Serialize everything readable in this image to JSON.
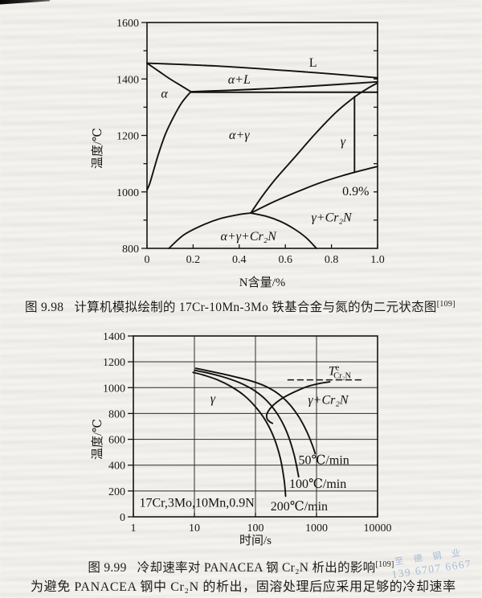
{
  "page": {
    "body_line": "为避免 PANACEA 钢中 Cr₂N 的析出，固溶处理后应采用足够的冷却速率",
    "watermark": {
      "line1": "至 德 钢 业",
      "line2": "139 6707 6667",
      "color": "#9cb3d8"
    }
  },
  "chart_data": [
    {
      "type": "line",
      "title": "计算机模拟绘制的 17Cr-10Mn-3Mo 铁基合金与氮的伪二元状态图",
      "caption": {
        "label": "图 9.98",
        "text": "计算机模拟绘制的 17Cr-10Mn-3Mo 铁基合金与氮的伪二元状态图",
        "ref": "[109]"
      },
      "xlabel": "N含量/%",
      "ylabel": "温度/℃",
      "xscale": "linear",
      "xlim": [
        0,
        1
      ],
      "ylim": [
        800,
        1600
      ],
      "grid": "off",
      "xlabel_dy": 47,
      "xticks": [
        {
          "v": 0,
          "l": "0"
        },
        {
          "v": 0.2,
          "l": "0.2"
        },
        {
          "v": 0.4,
          "l": "0.4"
        },
        {
          "v": 0.6,
          "l": "0.6"
        },
        {
          "v": 0.8,
          "l": "0.8"
        },
        {
          "v": 1,
          "l": "1.0"
        }
      ],
      "yticks": [
        {
          "v": 800,
          "l": "800"
        },
        {
          "v": 900
        },
        {
          "v": 1000,
          "l": "1000"
        },
        {
          "v": 1100
        },
        {
          "v": 1200,
          "l": "1200"
        },
        {
          "v": 1300
        },
        {
          "v": 1400,
          "l": "1400"
        },
        {
          "v": 1500
        },
        {
          "v": 1600,
          "l": "1600"
        }
      ],
      "right_ticks": [
        900,
        1000,
        1100,
        1200,
        1300,
        1400,
        1500
      ],
      "series": [
        {
          "name": "liquidus",
          "pts": [
            [
              0,
              1456
            ],
            [
              0.3,
              1446
            ],
            [
              0.6,
              1430
            ],
            [
              0.8,
              1418
            ],
            [
              1,
              1404
            ]
          ]
        },
        {
          "name": "delta-solidus",
          "pts": [
            [
              0,
              1456
            ],
            [
              0.05,
              1428
            ],
            [
              0.1,
              1400
            ],
            [
              0.15,
              1375
            ],
            [
              0.19,
              1355
            ]
          ]
        },
        {
          "name": "alpha-l-lower-boundary",
          "pts": [
            [
              0.19,
              1355
            ],
            [
              0.45,
              1363
            ],
            [
              0.7,
              1374
            ],
            [
              1,
              1390
            ]
          ]
        },
        {
          "name": "horizontal-line",
          "pts": [
            [
              0.19,
              1353
            ],
            [
              1,
              1353
            ]
          ]
        },
        {
          "name": "alpha-gamma-left-boundary",
          "pts": [
            [
              0.19,
              1355
            ],
            [
              0.15,
              1315
            ],
            [
              0.115,
              1265
            ],
            [
              0.08,
              1205
            ],
            [
              0.05,
              1135
            ],
            [
              0.03,
              1080
            ],
            [
              0.012,
              1030
            ],
            [
              0,
              1007
            ]
          ]
        },
        {
          "name": "gamma-left-boundary",
          "pts": [
            [
              0.45,
              925
            ],
            [
              0.5,
              985
            ],
            [
              0.56,
              1048
            ],
            [
              0.64,
              1122
            ],
            [
              0.73,
              1206
            ],
            [
              0.82,
              1282
            ],
            [
              0.9,
              1336
            ],
            [
              0.96,
              1368
            ],
            [
              1,
              1386
            ]
          ]
        },
        {
          "name": "gamma-cr2n-boundary",
          "pts": [
            [
              0.45,
              925
            ],
            [
              0.55,
              965
            ],
            [
              0.65,
              1000
            ],
            [
              0.75,
              1032
            ],
            [
              0.85,
              1058
            ],
            [
              0.95,
              1080
            ],
            [
              1,
              1090
            ]
          ]
        },
        {
          "name": "line-0-9-percent",
          "pts": [
            [
              0.9,
              1069
            ],
            [
              0.9,
              1338
            ]
          ]
        },
        {
          "name": "dome-left",
          "pts": [
            [
              0.095,
              800
            ],
            [
              0.16,
              848
            ],
            [
              0.24,
              882
            ],
            [
              0.32,
              906
            ],
            [
              0.4,
              920
            ],
            [
              0.45,
              925
            ]
          ]
        },
        {
          "name": "dome-right",
          "pts": [
            [
              0.45,
              925
            ],
            [
              0.52,
              913
            ],
            [
              0.58,
              895
            ],
            [
              0.64,
              868
            ],
            [
              0.69,
              838
            ],
            [
              0.735,
              800
            ]
          ]
        }
      ],
      "labels": [
        {
          "name": "region-label-l",
          "x": 0.72,
          "y": 1458,
          "segs": [
            {
              "t": "L"
            }
          ]
        },
        {
          "name": "region-label-alpha-l",
          "x": 0.4,
          "y": 1398,
          "segs": [
            {
              "t": "α+L",
              "it": true
            }
          ]
        },
        {
          "name": "region-label-alpha",
          "x": 0.075,
          "y": 1348,
          "segs": [
            {
              "t": "α",
              "it": true
            }
          ]
        },
        {
          "name": "region-label-alpha-gamma",
          "x": 0.4,
          "y": 1202,
          "segs": [
            {
              "t": "α+γ",
              "it": true
            }
          ]
        },
        {
          "name": "region-label-gamma",
          "x": 0.85,
          "y": 1178,
          "segs": [
            {
              "t": "γ",
              "it": true
            }
          ]
        },
        {
          "name": "annotation-0-9-percent",
          "x": 0.905,
          "y": 1002,
          "segs": [
            {
              "t": "0.9%"
            }
          ]
        },
        {
          "name": "region-label-gamma-cr2n",
          "x": 0.8,
          "y": 910,
          "segs": [
            {
              "t": "γ+Cr₂N",
              "it": true
            }
          ]
        },
        {
          "name": "region-label-alpha-gamma-cr2n",
          "x": 0.44,
          "y": 842,
          "segs": [
            {
              "t": "α+γ+Cr₂N",
              "it": true
            }
          ]
        }
      ]
    },
    {
      "type": "line",
      "title": "冷却速率对 PANACEA 钢 Cr₂N 析出的影响",
      "caption": {
        "label": "图 9.99",
        "text": "冷却速率对 PANACEA 钢 Cr₂N 析出的影响",
        "ref": "[109]"
      },
      "xlabel": "时间/s",
      "ylabel": "温度/℃",
      "xscale": "log",
      "xlim": [
        1,
        10000
      ],
      "ylim": [
        0,
        1400
      ],
      "grid": "on",
      "xlabel_dy": 34,
      "xgrid": [
        10,
        100,
        1000
      ],
      "ygrid": [
        200,
        400,
        600,
        800,
        1000,
        1200
      ],
      "xticks": [
        {
          "v": 1,
          "l": "1"
        },
        {
          "v": 10,
          "l": "10"
        },
        {
          "v": 100,
          "l": "100"
        },
        {
          "v": 1000,
          "l": "1000"
        },
        {
          "v": 10000,
          "l": "10000"
        }
      ],
      "yticks": [
        {
          "v": 0,
          "l": "0"
        },
        {
          "v": 200,
          "l": "200"
        },
        {
          "v": 400,
          "l": "400"
        },
        {
          "v": 600,
          "l": "600"
        },
        {
          "v": 800,
          "l": "800"
        },
        {
          "v": 1000,
          "l": "1000"
        },
        {
          "v": 1200,
          "l": "1200"
        },
        {
          "v": 1400,
          "l": "1400"
        }
      ],
      "series": [
        {
          "name": "cooling-200c-min",
          "rate": "200℃/min",
          "pts": [
            [
              9.5,
              1118
            ],
            [
              14,
              1098
            ],
            [
              24,
              1060
            ],
            [
              40,
              1008
            ],
            [
              65,
              940
            ],
            [
              100,
              852
            ],
            [
              145,
              748
            ],
            [
              200,
              615
            ],
            [
              255,
              455
            ],
            [
              295,
              285
            ],
            [
              312,
              160
            ]
          ]
        },
        {
          "name": "cooling-100c-min",
          "rate": "100℃/min",
          "pts": [
            [
              10,
              1135
            ],
            [
              16,
              1115
            ],
            [
              30,
              1082
            ],
            [
              55,
              1038
            ],
            [
              100,
              972
            ],
            [
              160,
              890
            ],
            [
              240,
              780
            ],
            [
              330,
              650
            ],
            [
              430,
              480
            ],
            [
              510,
              310
            ]
          ]
        },
        {
          "name": "cooling-50c-min",
          "rate": "50℃/min",
          "pts": [
            [
              10.5,
              1150
            ],
            [
              16,
              1132
            ],
            [
              28,
              1108
            ],
            [
              50,
              1080
            ],
            [
              90,
              1048
            ],
            [
              150,
              1008
            ],
            [
              240,
              950
            ],
            [
              360,
              872
            ],
            [
              520,
              770
            ],
            [
              700,
              655
            ],
            [
              870,
              545
            ],
            [
              950,
              490
            ]
          ]
        },
        {
          "name": "cr2n-precipitation-c-curve",
          "pts": [
            [
              1650,
              1045
            ],
            [
              1100,
              1032
            ],
            [
              700,
              1008
            ],
            [
              450,
              970
            ],
            [
              300,
              928
            ],
            [
              220,
              885
            ],
            [
              175,
              840
            ],
            [
              155,
              800
            ],
            [
              152,
              778
            ],
            [
              158,
              752
            ],
            [
              172,
              735
            ],
            [
              190,
              724
            ]
          ]
        },
        {
          "name": "equilibrium-temperature-line",
          "dash": true,
          "pts": [
            [
              340,
              1060
            ],
            [
              5500,
              1060
            ]
          ]
        }
      ],
      "labels": [
        {
          "name": "region-label-gamma",
          "x": 20,
          "y": 915,
          "segs": [
            {
              "t": "γ",
              "it": true
            }
          ]
        },
        {
          "name": "region-label-gamma-cr2n",
          "x": 1550,
          "y": 905,
          "segs": [
            {
              "t": "γ+Cr₂N",
              "it": true
            }
          ]
        },
        {
          "name": "annotation-equilibrium-temp",
          "x": 2400,
          "y": 1130,
          "segs": [
            {
              "t": "T",
              "it": true
            },
            {
              "t": "e",
              "sup": true
            },
            {
              "t": "Cr₂N",
              "sub": true,
              "dx": -7
            }
          ]
        },
        {
          "name": "curve-label-50c-min",
          "x": 1320,
          "y": 440,
          "segs": [
            {
              "t": "50℃/min"
            }
          ]
        },
        {
          "name": "curve-label-100c-min",
          "x": 1050,
          "y": 255,
          "segs": [
            {
              "t": "100℃/min"
            }
          ]
        },
        {
          "name": "curve-label-200c-min",
          "x": 520,
          "y": 82,
          "segs": [
            {
              "t": "200℃/min"
            }
          ]
        },
        {
          "name": "annotation-composition",
          "x": 11,
          "y": 110,
          "segs": [
            {
              "t": "17Cr,3Mo,10Mn,0.9N"
            }
          ]
        }
      ]
    }
  ]
}
